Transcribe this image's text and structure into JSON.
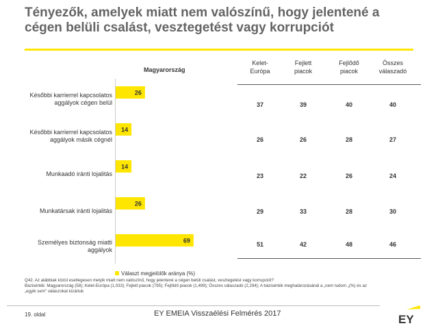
{
  "title": "Tényezők, amelyek miatt nem valószínű, hogy jelentené a cégen belüli csalást, vesztegetést vagy korrupciót",
  "colors": {
    "accent": "#ffe600",
    "title": "#646464"
  },
  "chart_data": {
    "type": "bar",
    "orientation": "horizontal",
    "title": "Magyarország",
    "categories": [
      "Későbbi karrierrel kapcsolatos aggályok cégen belül",
      "Későbbi karrierrel kapcsolatos aggályok másik cégnél",
      "Munkaadó iránti lojalitás",
      "Munkatársak iránti lojalitás",
      "Személyes biztonság miatti aggályok"
    ],
    "series": [
      {
        "name": "Választ megjelölők aránya (%)",
        "values": [
          26,
          14,
          14,
          26,
          69
        ]
      }
    ],
    "xlim": [
      0,
      100
    ],
    "legend": "bottom-left"
  },
  "table": {
    "columns": [
      [
        "Kelet-",
        "Európa"
      ],
      [
        "Fejlett",
        "piacok"
      ],
      [
        "Fejlődő",
        "piacok"
      ],
      [
        "Összes",
        "válaszadó"
      ]
    ],
    "rows": [
      [
        "37",
        "39",
        "40",
        "40"
      ],
      [
        "26",
        "26",
        "28",
        "27"
      ],
      [
        "23",
        "22",
        "26",
        "24"
      ],
      [
        "29",
        "33",
        "28",
        "30"
      ],
      [
        "51",
        "42",
        "48",
        "46"
      ]
    ]
  },
  "footnote": {
    "line1": "Q42.  Az alábbiak közül esetlegesen melyik miatt nem valószínű, hogy jelentené a cégen belüli csalást, vesztegetést vagy korrupciót?",
    "line2": "Bázisérték: Magyarország (58); Kelet-Európa (1,033); Fejlett piacok (795); Fejlődő piacok (1,499); Összes válaszadó (2,294); A bázisérték meghatározásánál a „nem tudom „(%) és az",
    "line3": "„egyik sem\" válaszokat kizártuk"
  },
  "footer": {
    "page": "19. oldal",
    "survey_title": "EY EMEIA Visszaélési Felmérés 2017",
    "logo_text": "EY"
  }
}
